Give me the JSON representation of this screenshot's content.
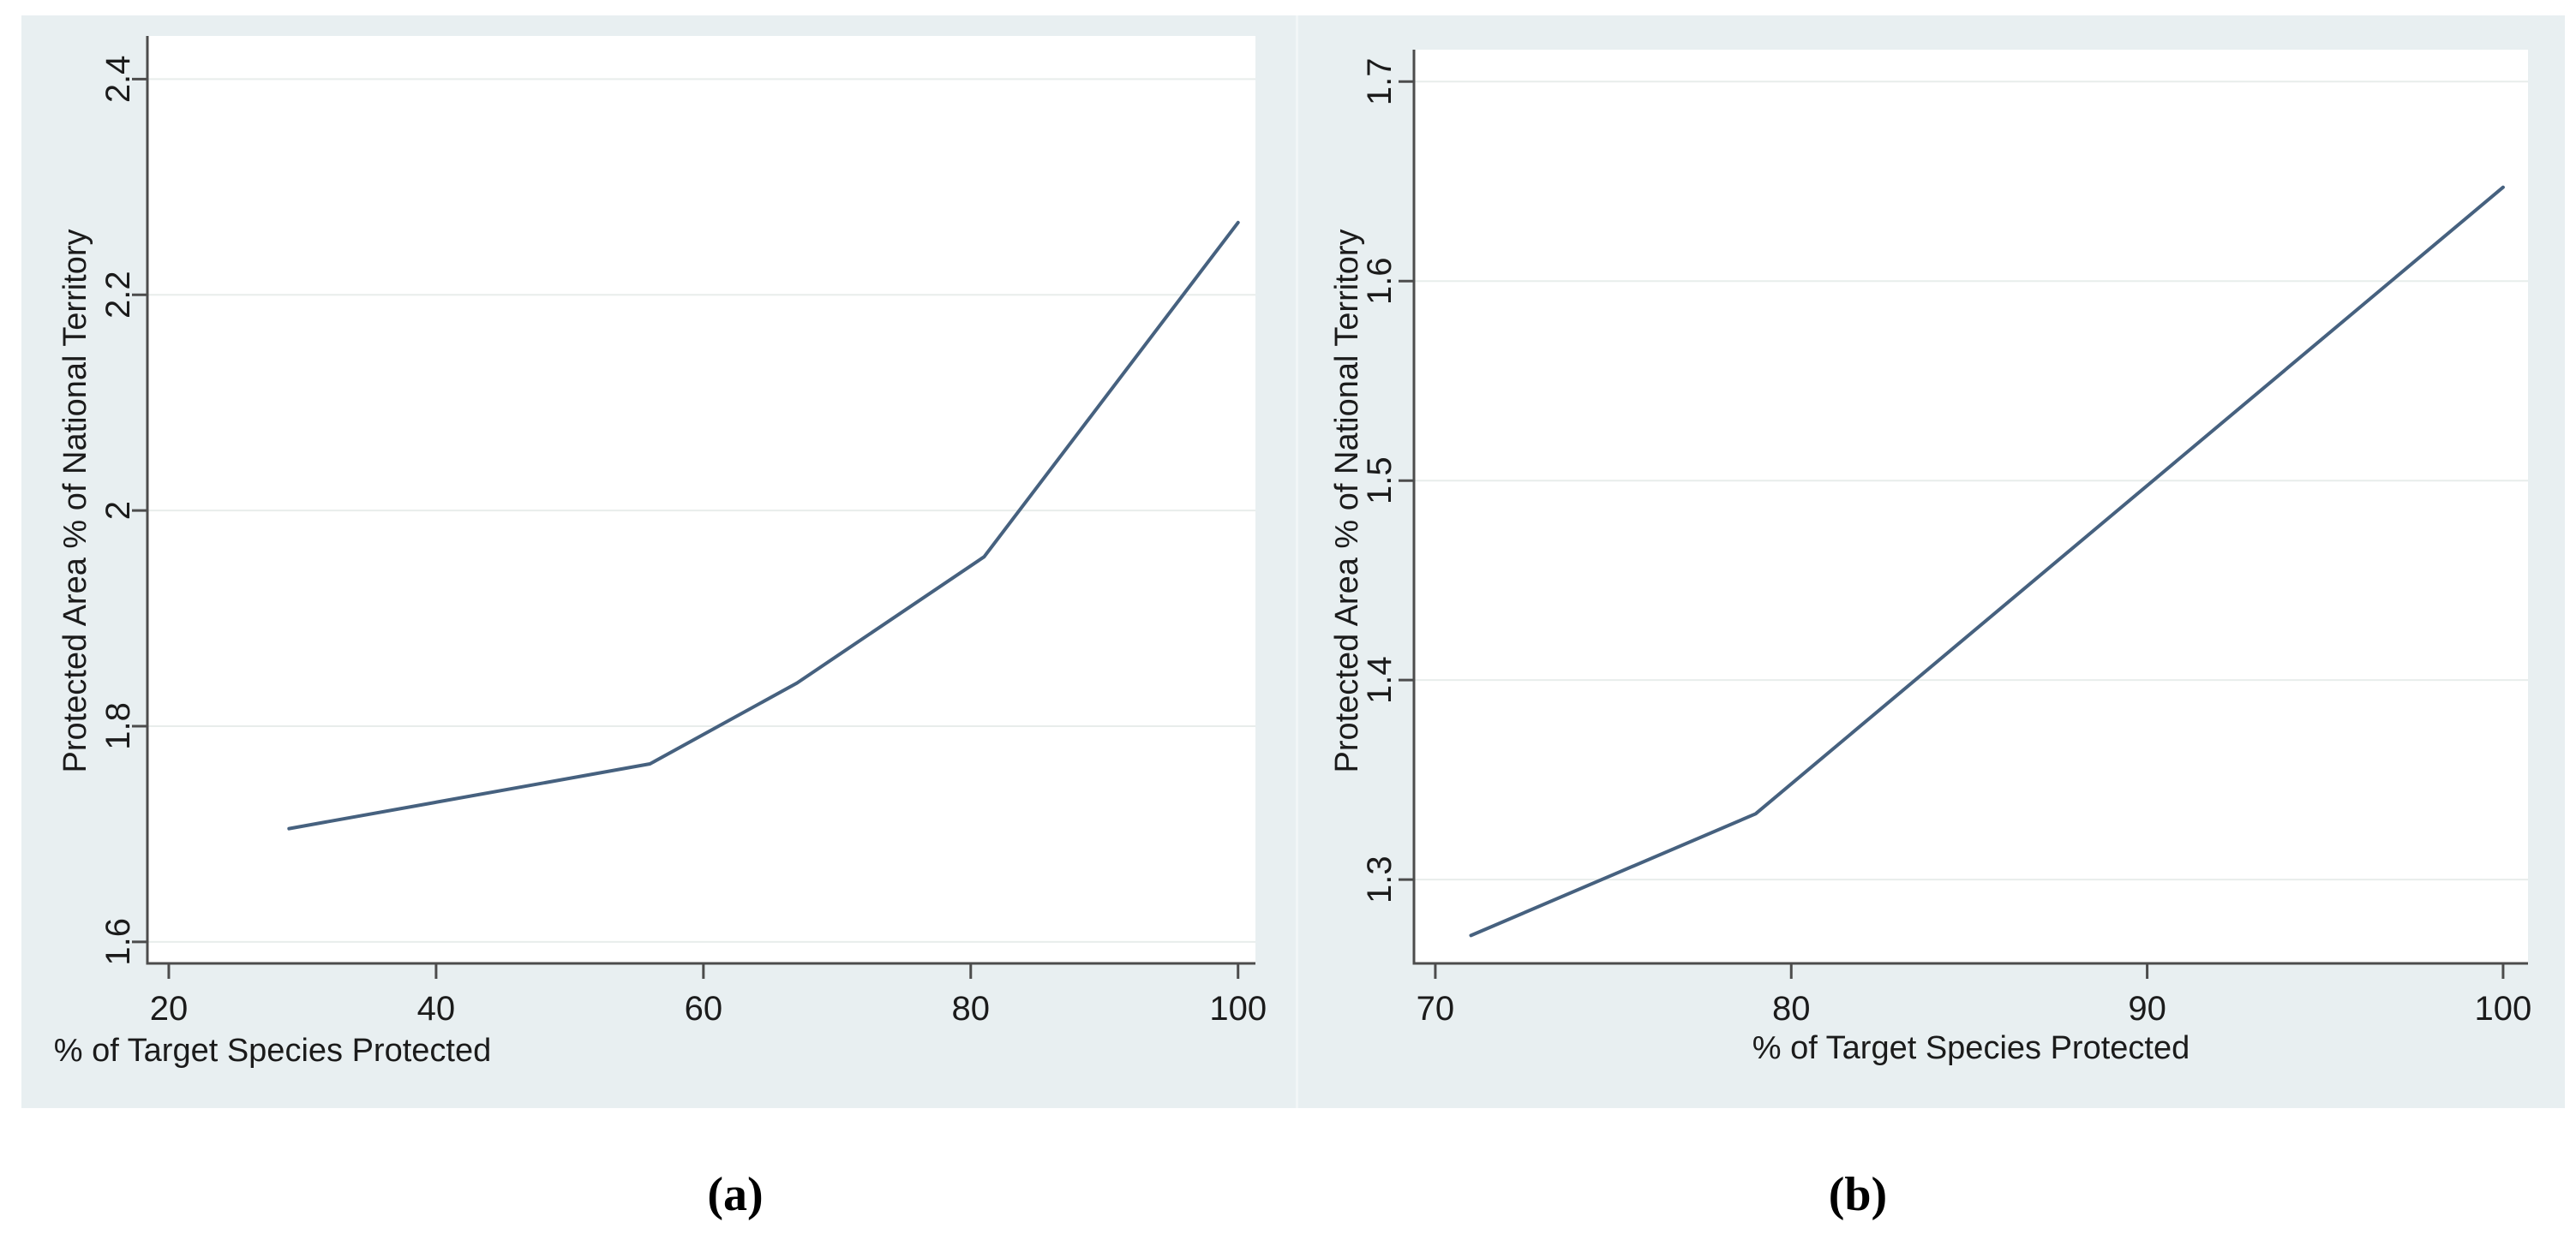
{
  "figure": {
    "captions": {
      "a": "(a)",
      "b": "(b)"
    }
  },
  "colors": {
    "panel_bg": "#e8eff1",
    "plot_bg": "#ffffff",
    "grid": "#e8edeb",
    "axis": "#4c4c4c",
    "text": "#1b1b1b",
    "line": "#46617f"
  },
  "chart_data": [
    {
      "type": "line",
      "panel": "a",
      "title": "",
      "xlabel": "% of Target Species Protected",
      "ylabel": "Protected Area % of National Territory",
      "x": [
        29,
        56,
        67,
        81,
        100
      ],
      "y": [
        1.705,
        1.765,
        1.84,
        1.957,
        2.267
      ],
      "xticks": [
        20,
        40,
        60,
        80,
        100
      ],
      "yticks": [
        1.6,
        1.8,
        2,
        2.2,
        2.4
      ],
      "xlim": [
        18.4,
        101.3
      ],
      "ylim": [
        1.58,
        2.44
      ],
      "grid": "horizontal",
      "legend": "none",
      "caption": "(a)"
    },
    {
      "type": "line",
      "panel": "b",
      "title": "",
      "xlabel": "% of Target Species Protected",
      "ylabel": "Protected Area % of National Territory",
      "x": [
        71,
        79,
        100
      ],
      "y": [
        1.272,
        1.333,
        1.647
      ],
      "xticks": [
        70,
        80,
        90,
        100
      ],
      "yticks": [
        1.3,
        1.4,
        1.5,
        1.6,
        1.7
      ],
      "xlim": [
        69.4,
        100.7
      ],
      "ylim": [
        1.258,
        1.716
      ],
      "grid": "horizontal",
      "legend": "none",
      "caption": "(b)"
    }
  ]
}
